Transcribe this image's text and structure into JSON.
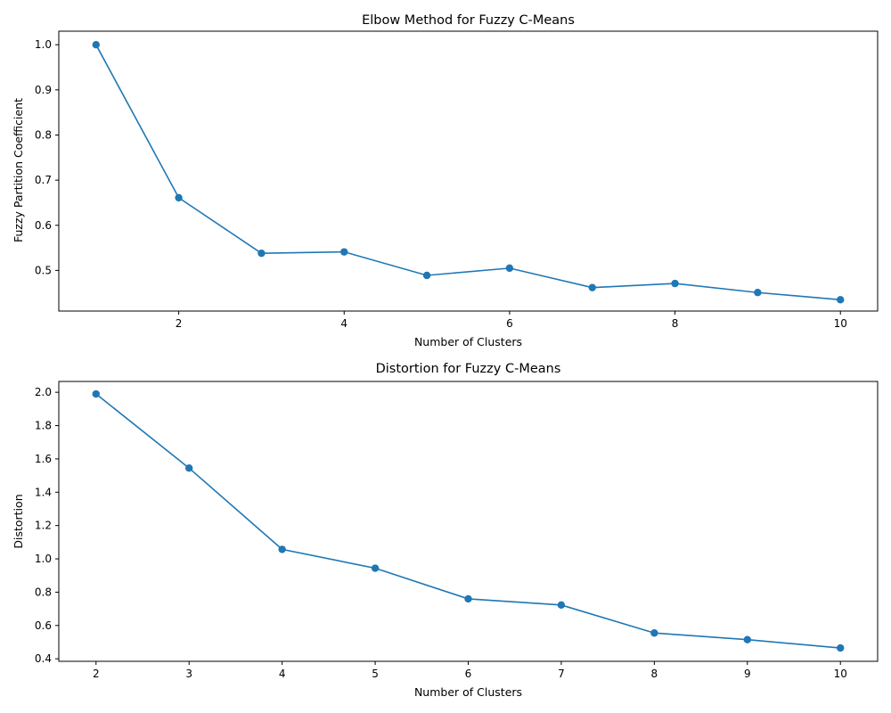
{
  "chart_data": [
    {
      "type": "line",
      "title": "Elbow Method for Fuzzy C-Means",
      "xlabel": "Number of Clusters",
      "ylabel": "Fuzzy Partition Coefficient",
      "xlim": [
        0.55,
        10.45
      ],
      "ylim": [
        0.41,
        1.03
      ],
      "xticks": [
        2,
        4,
        6,
        8,
        10
      ],
      "xtick_labels": [
        "2",
        "4",
        "6",
        "8",
        "10"
      ],
      "yticks": [
        0.5,
        0.6,
        0.7,
        0.8,
        0.9,
        1.0
      ],
      "ytick_labels": [
        "0.5",
        "0.6",
        "0.7",
        "0.8",
        "0.9",
        "1.0"
      ],
      "grid": false,
      "color": "#1f77b4",
      "series": [
        {
          "x": [
            1,
            2,
            3,
            4,
            5,
            6,
            7,
            8,
            9,
            10
          ],
          "values": [
            1.0,
            0.661,
            0.538,
            0.541,
            0.489,
            0.505,
            0.462,
            0.471,
            0.451,
            0.435
          ]
        }
      ]
    },
    {
      "type": "line",
      "title": "Distortion for Fuzzy C-Means",
      "xlabel": "Number of Clusters",
      "ylabel": "Distortion",
      "xlim": [
        1.6,
        10.4
      ],
      "ylim": [
        0.385,
        2.065
      ],
      "xticks": [
        2,
        3,
        4,
        5,
        6,
        7,
        8,
        9,
        10
      ],
      "xtick_labels": [
        "2",
        "3",
        "4",
        "5",
        "6",
        "7",
        "8",
        "9",
        "10"
      ],
      "yticks": [
        0.4,
        0.6,
        0.8,
        1.0,
        1.2,
        1.4,
        1.6,
        1.8,
        2.0
      ],
      "ytick_labels": [
        "0.4",
        "0.6",
        "0.8",
        "1.0",
        "1.2",
        "1.4",
        "1.6",
        "1.8",
        "2.0"
      ],
      "grid": false,
      "color": "#1f77b4",
      "series": [
        {
          "x": [
            2,
            3,
            4,
            5,
            6,
            7,
            8,
            9,
            10
          ],
          "values": [
            1.99,
            1.545,
            1.057,
            0.944,
            0.76,
            0.723,
            0.555,
            0.515,
            0.465
          ]
        }
      ]
    }
  ]
}
